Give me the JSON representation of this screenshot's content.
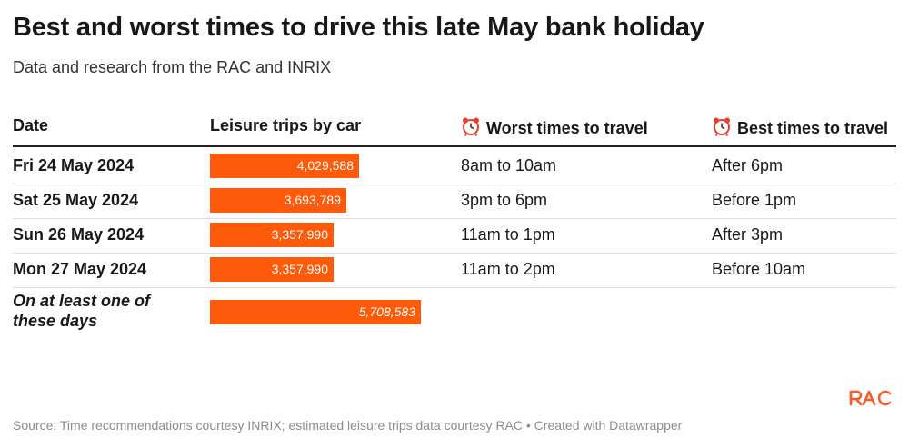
{
  "title": "Best and worst times to drive this late May bank holiday",
  "subtitle": "Data and research from the RAC and INRIX",
  "headers": {
    "date": "Date",
    "trips": "Leisure trips by car",
    "worst": "Worst times to travel",
    "best": "Best times to travel"
  },
  "rows": [
    {
      "date": "Fri 24 May 2024",
      "trips_label": "4,029,588",
      "worst": "8am to 10am",
      "best": "After 6pm"
    },
    {
      "date": "Sat 25 May 2024",
      "trips_label": "3,693,789",
      "worst": "3pm to 6pm",
      "best": "Before 1pm"
    },
    {
      "date": "Sun 26 May 2024",
      "trips_label": "3,357,990",
      "worst": "11am to 1pm",
      "best": "After 3pm"
    },
    {
      "date": "Mon 27 May 2024",
      "trips_label": "3,357,990",
      "worst": "11am to 2pm",
      "best": "Before 10am"
    },
    {
      "date": "On at least one of these days",
      "trips_label": "5,708,583",
      "worst": "",
      "best": ""
    }
  ],
  "chart_data": {
    "type": "table",
    "columns": [
      "Date",
      "Leisure trips by car",
      "Worst times to travel",
      "Best times to travel"
    ],
    "categories": [
      "Fri 24 May 2024",
      "Sat 25 May 2024",
      "Sun 26 May 2024",
      "Mon 27 May 2024",
      "On at least one of these days"
    ],
    "values": [
      4029588,
      3693789,
      3357990,
      3357990,
      5708583
    ],
    "bar_max": 10000000,
    "bar_color": "#ff5a0a"
  },
  "source": "Source: Time recommendations courtesy INRIX; estimated leisure trips data courtesy RAC • Created with Datawrapper",
  "logo": "RAC",
  "colors": {
    "accent": "#ff5a0a",
    "logo": "#f95a28"
  },
  "icons": {
    "worst": "alarm-clock-icon",
    "best": "alarm-clock-icon"
  }
}
